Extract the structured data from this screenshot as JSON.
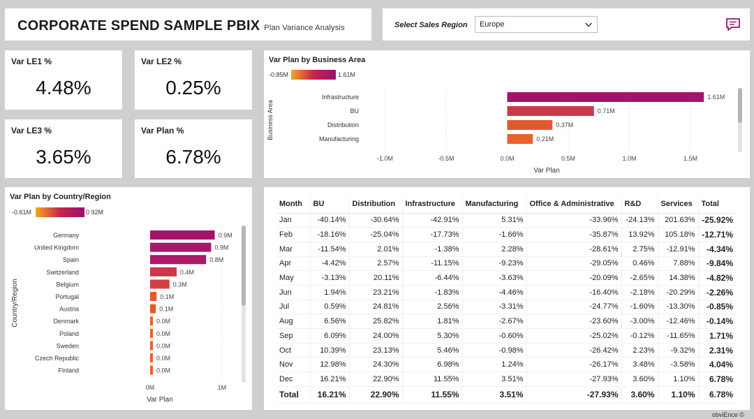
{
  "header": {
    "title": "CORPORATE SPEND SAMPLE PBIX",
    "subtitle": "Plan Variance Analysis"
  },
  "slicer": {
    "label": "Select Sales Region",
    "value": "Europe",
    "chevron_icon": "chevron-down-icon"
  },
  "chat_icon": "comment-icon",
  "kpis": [
    {
      "label": "Var LE1 %",
      "value": "4.48%"
    },
    {
      "label": "Var LE2 %",
      "value": "0.25%"
    },
    {
      "label": "Var LE3 %",
      "value": "3.65%"
    },
    {
      "label": "Var Plan %",
      "value": "6.78%"
    }
  ],
  "business_chart": {
    "title": "Var Plan by Business Area",
    "legend_min": "-0.85M",
    "legend_max": "1.61M",
    "ylabel": "Business Area",
    "xlabel": "Var Plan"
  },
  "country_chart": {
    "title": "Var Plan by Country/Region",
    "legend_min": "-0.61M",
    "legend_max": "0.92M",
    "ylabel": "Country/Region",
    "xlabel": "Var Plan"
  },
  "chart_data": [
    {
      "type": "bar",
      "orientation": "horizontal",
      "title": "Var Plan by Business Area",
      "categories": [
        "Infrastructure",
        "BU",
        "Distribution",
        "Manufacturing"
      ],
      "values": [
        1.61,
        0.71,
        0.37,
        0.21
      ],
      "labels": [
        "1.61M",
        "0.71M",
        "0.37M",
        "0.21M"
      ],
      "colors": [
        "#a3136b",
        "#c8394a",
        "#e05a30",
        "#e8622c"
      ],
      "xlabel": "Var Plan",
      "ylabel": "Business Area",
      "xlim": [
        -1.1,
        1.7
      ],
      "ticks": [
        -1.0,
        -0.5,
        0.0,
        0.5,
        1.0,
        1.5
      ],
      "tick_labels": [
        "-1.0M",
        "-0.5M",
        "0.0M",
        "0.5M",
        "1.0M",
        "1.5M"
      ],
      "legend_min": -0.85,
      "legend_max": 1.61
    },
    {
      "type": "bar",
      "orientation": "horizontal",
      "title": "Var Plan by Country/Region",
      "categories": [
        "Germany",
        "United Kingdom",
        "Spain",
        "Switzerland",
        "Belgium",
        "Portugal",
        "Austria",
        "Denmark",
        "Poland",
        "Sweden",
        "Czech Republic",
        "Finland"
      ],
      "values": [
        0.9,
        0.85,
        0.78,
        0.37,
        0.27,
        0.09,
        0.08,
        0.03,
        0.02,
        0.02,
        0.02,
        0.01
      ],
      "labels": [
        "0.9M",
        "0.9M",
        "0.8M",
        "0.4M",
        "0.3M",
        "0.1M",
        "0.1M",
        "0.0M",
        "0.0M",
        "0.0M",
        "0.0M",
        "0.0M"
      ],
      "colors": [
        "#a3136b",
        "#a8156a",
        "#ad1868",
        "#c8394a",
        "#cf4140",
        "#e05a30",
        "#e05a30",
        "#e8622c",
        "#e8622c",
        "#e8622c",
        "#e8622c",
        "#e8622c"
      ],
      "xlabel": "Var Plan",
      "ylabel": "Country/Region",
      "xlim": [
        0,
        1.05
      ],
      "ticks": [
        0,
        1
      ],
      "tick_labels": [
        "0M",
        "1M"
      ],
      "legend_min": -0.61,
      "legend_max": 0.92
    }
  ],
  "matrix": {
    "headers": [
      "Month",
      "BU",
      "Distribution",
      "Infrastructure",
      "Manufacturing",
      "Office & Administrative",
      "R&D",
      "Services",
      "Total"
    ],
    "rows": [
      [
        "Jan",
        "-40.14%",
        "-30.64%",
        "-42.91%",
        "5.31%",
        "-33.96%",
        "-24.13%",
        "201.63%",
        "-25.92%"
      ],
      [
        "Feb",
        "-18.16%",
        "-25.04%",
        "-17.73%",
        "-1.66%",
        "-35.87%",
        "13.92%",
        "105.18%",
        "-12.71%"
      ],
      [
        "Mar",
        "-11.54%",
        "2.01%",
        "-1.38%",
        "2.28%",
        "-28.61%",
        "2.75%",
        "-12.91%",
        "-4.34%"
      ],
      [
        "Apr",
        "-4.42%",
        "2.57%",
        "-11.15%",
        "-9.23%",
        "-29.05%",
        "0.46%",
        "7.88%",
        "-9.84%"
      ],
      [
        "May",
        "-3.13%",
        "20.11%",
        "-6.44%",
        "-3.63%",
        "-20.09%",
        "-2.65%",
        "14.38%",
        "-4.82%"
      ],
      [
        "Jun",
        "1.94%",
        "23.21%",
        "-1.83%",
        "-4.46%",
        "-16.40%",
        "-2.18%",
        "-20.29%",
        "-2.26%"
      ],
      [
        "Jul",
        "0.59%",
        "24.81%",
        "2.56%",
        "-3.31%",
        "-24.77%",
        "-1.60%",
        "-13.30%",
        "-0.85%"
      ],
      [
        "Aug",
        "6.56%",
        "25.82%",
        "1.81%",
        "-2.67%",
        "-23.60%",
        "-3.00%",
        "-12.46%",
        "-0.14%"
      ],
      [
        "Sep",
        "6.09%",
        "24.00%",
        "5.30%",
        "-0.60%",
        "-25.02%",
        "-0.12%",
        "-11.65%",
        "1.71%"
      ],
      [
        "Oct",
        "10.39%",
        "23.13%",
        "5.46%",
        "-0.98%",
        "-26.42%",
        "2.23%",
        "-9.32%",
        "2.31%"
      ],
      [
        "Nov",
        "12.98%",
        "24.30%",
        "6.98%",
        "1.24%",
        "-26.17%",
        "3.48%",
        "-3.58%",
        "4.04%"
      ],
      [
        "Dec",
        "16.21%",
        "22.90%",
        "11.55%",
        "3.51%",
        "-27.93%",
        "3.60%",
        "1.10%",
        "6.78%"
      ]
    ],
    "total": [
      "Total",
      "16.21%",
      "22.90%",
      "11.55%",
      "3.51%",
      "-27.93%",
      "3.60%",
      "1.10%",
      "6.78%"
    ]
  },
  "footer": "obviEnce ©"
}
